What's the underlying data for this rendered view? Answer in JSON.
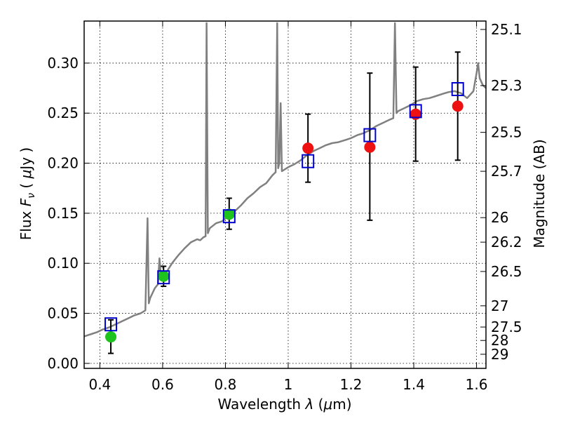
{
  "chart_data": {
    "type": "scatter",
    "title": "",
    "xlabel": "Wavelength λ (μm)",
    "ylabel": "Flux F_ν ( μJy )",
    "ylabel_right": "Magnitude (AB)",
    "xlim": [
      0.35,
      1.63
    ],
    "ylim": [
      -0.005,
      0.342
    ],
    "grid": true,
    "x_ticks": [
      0.4,
      0.6,
      0.8,
      1.0,
      1.2,
      1.4,
      1.6
    ],
    "x_tick_labels": [
      "0.4",
      "0.6",
      "0.8",
      "1",
      "1.2",
      "1.4",
      "1.6"
    ],
    "y_ticks": [
      0.0,
      0.05,
      0.1,
      0.15,
      0.2,
      0.25,
      0.3
    ],
    "y_tick_labels": [
      "0.00",
      "0.05",
      "0.10",
      "0.15",
      "0.20",
      "0.25",
      "0.30"
    ],
    "right_ticks": [
      {
        "label": "25.1",
        "flux": 0.3336
      },
      {
        "label": "25.3",
        "flux": 0.2775
      },
      {
        "label": "25.5",
        "flux": 0.2308
      },
      {
        "label": "25.7",
        "flux": 0.1919
      },
      {
        "label": "26",
        "flux": 0.1456
      },
      {
        "label": "26.2",
        "flux": 0.1211
      },
      {
        "label": "26.5",
        "flux": 0.0918
      },
      {
        "label": "27",
        "flux": 0.0575
      },
      {
        "label": "27.5",
        "flux": 0.0363
      },
      {
        "label": "28",
        "flux": 0.0229
      },
      {
        "label": "29",
        "flux": 0.0091
      }
    ],
    "colors": {
      "model": "#808080",
      "green": "#1ec31e",
      "red": "#ee1111",
      "square": "#0000cc",
      "errorbar": "#000000"
    },
    "series": [
      {
        "type": "line",
        "x": [
          0.35,
          0.37,
          0.39,
          0.41,
          0.43,
          0.45,
          0.47,
          0.49,
          0.51,
          0.53,
          0.545,
          0.552,
          0.556,
          0.56,
          0.575,
          0.585,
          0.59,
          0.595,
          0.61,
          0.63,
          0.65,
          0.67,
          0.69,
          0.71,
          0.72,
          0.73,
          0.737,
          0.74,
          0.744,
          0.75,
          0.77,
          0.79,
          0.81,
          0.83,
          0.85,
          0.87,
          0.89,
          0.91,
          0.93,
          0.95,
          0.96,
          0.965,
          0.968,
          0.972,
          0.976,
          0.98,
          1.0,
          1.02,
          1.04,
          1.06,
          1.08,
          1.1,
          1.12,
          1.14,
          1.16,
          1.18,
          1.2,
          1.22,
          1.24,
          1.26,
          1.28,
          1.3,
          1.32,
          1.335,
          1.34,
          1.345,
          1.35,
          1.37,
          1.39,
          1.41,
          1.43,
          1.45,
          1.47,
          1.49,
          1.51,
          1.53,
          1.55,
          1.57,
          1.59,
          1.6,
          1.605,
          1.61,
          1.62,
          1.63
        ],
        "y": [
          0.027,
          0.029,
          0.031,
          0.034,
          0.036,
          0.039,
          0.042,
          0.045,
          0.048,
          0.05,
          0.053,
          0.145,
          0.06,
          0.065,
          0.075,
          0.079,
          0.105,
          0.085,
          0.09,
          0.1,
          0.108,
          0.115,
          0.121,
          0.124,
          0.123,
          0.126,
          0.127,
          0.34,
          0.13,
          0.135,
          0.14,
          0.142,
          0.148,
          0.152,
          0.158,
          0.165,
          0.17,
          0.176,
          0.18,
          0.188,
          0.191,
          0.34,
          0.195,
          0.2,
          0.26,
          0.192,
          0.196,
          0.199,
          0.203,
          0.208,
          0.212,
          0.215,
          0.218,
          0.22,
          0.221,
          0.223,
          0.225,
          0.228,
          0.23,
          0.233,
          0.237,
          0.24,
          0.243,
          0.245,
          0.34,
          0.25,
          0.252,
          0.255,
          0.258,
          0.262,
          0.264,
          0.265,
          0.267,
          0.269,
          0.271,
          0.272,
          0.27,
          0.265,
          0.272,
          0.29,
          0.3,
          0.285,
          0.278,
          0.275
        ],
        "color": "#808080"
      },
      {
        "type": "errorbar",
        "marker": "circle",
        "points": [
          {
            "x": 0.435,
            "y": 0.0265,
            "err_low": 0.0165,
            "err_high": 0.017,
            "color": "#1ec31e"
          },
          {
            "x": 0.603,
            "y": 0.087,
            "err_low": 0.01,
            "err_high": 0.01,
            "color": "#1ec31e"
          },
          {
            "x": 0.812,
            "y": 0.149,
            "err_low": 0.015,
            "err_high": 0.016,
            "color": "#1ec31e"
          },
          {
            "x": 1.063,
            "y": 0.215,
            "err_low": 0.034,
            "err_high": 0.034,
            "color": "#ee1111"
          },
          {
            "x": 1.26,
            "y": 0.216,
            "err_low": 0.073,
            "err_high": 0.074,
            "color": "#ee1111"
          },
          {
            "x": 1.406,
            "y": 0.249,
            "err_low": 0.047,
            "err_high": 0.047,
            "color": "#ee1111"
          },
          {
            "x": 1.54,
            "y": 0.257,
            "err_low": 0.054,
            "err_high": 0.054,
            "color": "#ee1111"
          }
        ]
      },
      {
        "type": "scatter",
        "marker": "open-square",
        "color": "#0000cc",
        "x": [
          0.435,
          0.603,
          0.812,
          1.063,
          1.26,
          1.406,
          1.54
        ],
        "y": [
          0.039,
          0.086,
          0.147,
          0.202,
          0.228,
          0.252,
          0.274
        ]
      }
    ]
  }
}
